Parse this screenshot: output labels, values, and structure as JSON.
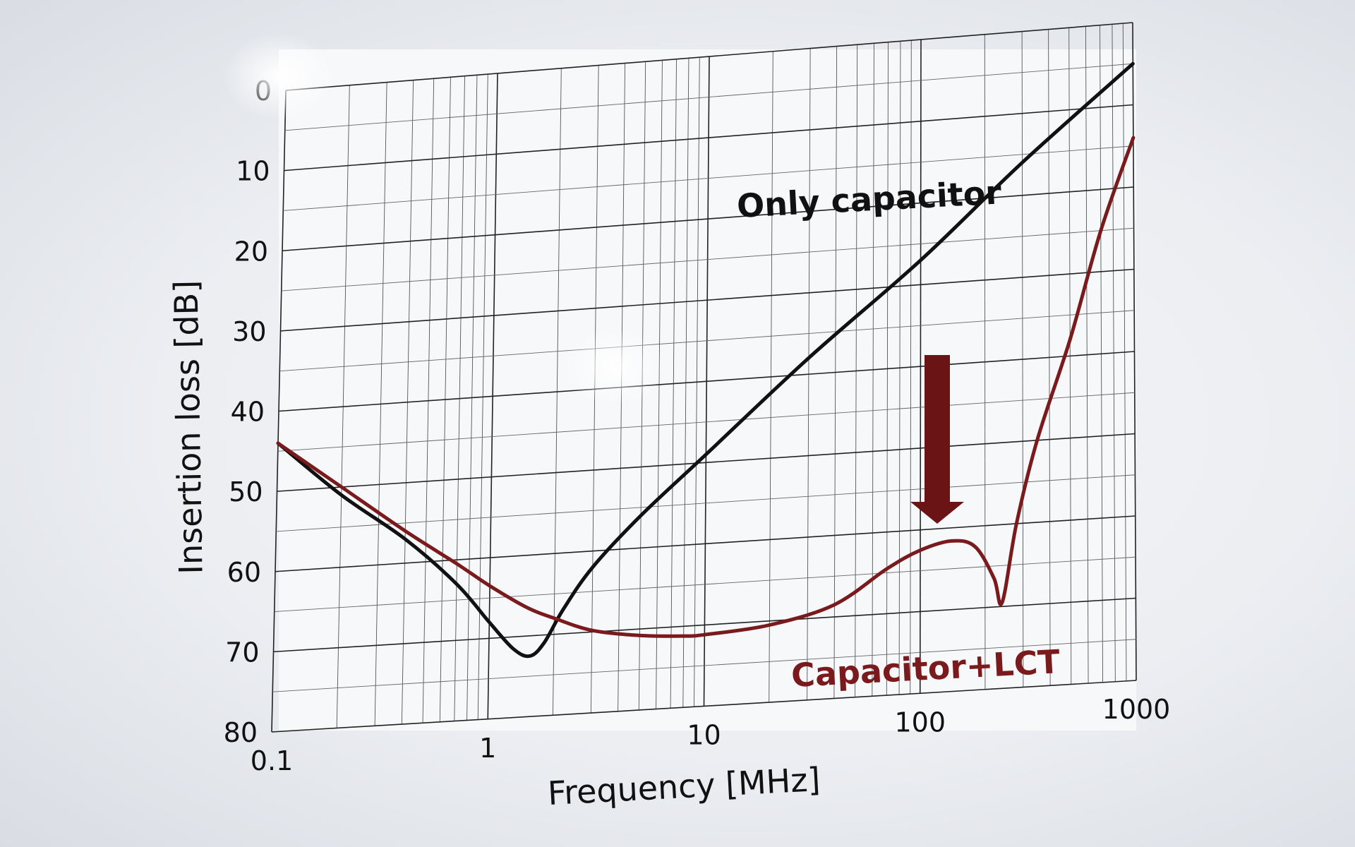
{
  "chart_data": {
    "type": "line",
    "xlabel": "Frequency [MHz]",
    "ylabel": "Insertion loss [dB]",
    "xscale": "log",
    "xlim": [
      0.1,
      1000
    ],
    "ylim": [
      80,
      0
    ],
    "y_axis_inverted": true,
    "grid": true,
    "x_ticks": [
      "0.1",
      "1",
      "10",
      "100",
      "1000"
    ],
    "y_ticks": [
      "0",
      "10",
      "20",
      "30",
      "40",
      "50",
      "60",
      "70",
      "80"
    ],
    "series": [
      {
        "name": "Only capacitor",
        "color": "#111111",
        "x": [
          0.1,
          0.2,
          0.4,
          0.7,
          1,
          1.3,
          1.55,
          1.8,
          2.2,
          3,
          5,
          10,
          30,
          100,
          300,
          1000
        ],
        "y": [
          44,
          51,
          57,
          63,
          68,
          71.5,
          72.5,
          71,
          67,
          62,
          56,
          49,
          38,
          27,
          16,
          5
        ]
      },
      {
        "name": "Capacitor+LCT",
        "color": "#7a1a1c",
        "x": [
          0.1,
          0.2,
          0.4,
          0.7,
          1,
          1.5,
          2,
          3,
          5,
          8,
          10,
          20,
          40,
          70,
          100,
          140,
          180,
          220,
          240,
          280,
          350,
          500,
          700,
          1000
        ],
        "y": [
          44,
          50,
          56,
          60.5,
          63.5,
          66.5,
          68,
          69.8,
          70.8,
          71.2,
          71.2,
          70.5,
          68.5,
          64.5,
          62.5,
          61.6,
          62.5,
          66.5,
          69.5,
          60,
          50,
          38,
          25,
          14
        ]
      }
    ],
    "annotations": [
      {
        "text": "Only capacitor",
        "color": "#111111"
      },
      {
        "text": "Capacitor+LCT",
        "color": "#7a1a1c"
      },
      {
        "shape": "down-arrow",
        "color": "#6b1416",
        "meaning": "reduction of insertion loss"
      }
    ]
  }
}
